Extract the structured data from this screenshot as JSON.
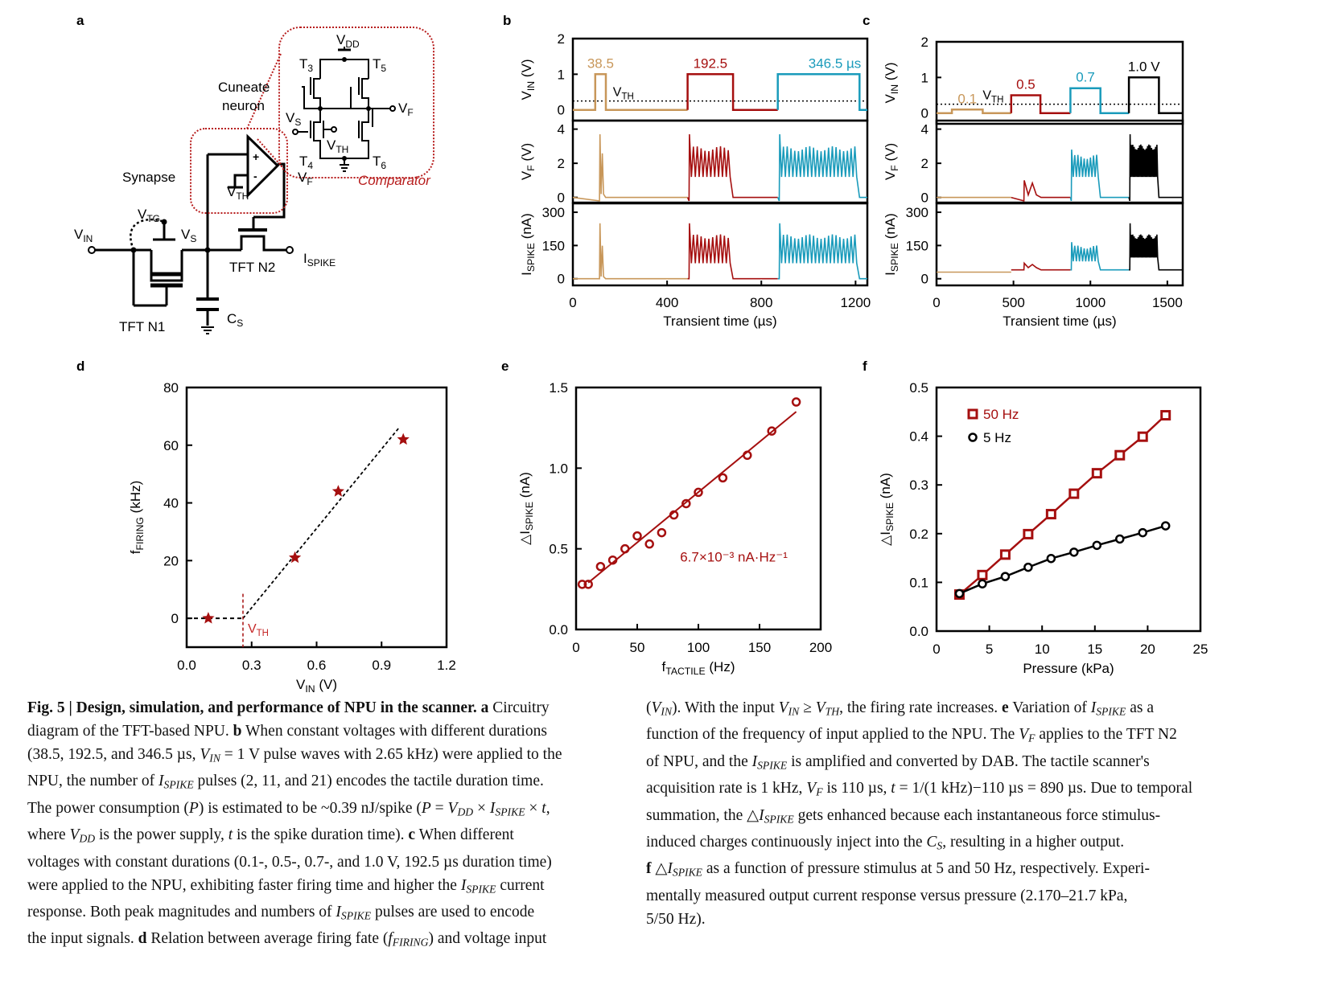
{
  "figure": {
    "panel_labels": [
      "a",
      "b",
      "c",
      "d",
      "e",
      "f"
    ],
    "colors": {
      "tan": "#c8975a",
      "red": "#a50f0f",
      "cyan": "#1a9bbb",
      "black": "#000000"
    }
  },
  "panel_a": {
    "cuneate_label_1": "Cuneate",
    "cuneate_label_2": "neuron",
    "synapse_label": "Synapse",
    "vtg": "V",
    "vtg_sub": "TG",
    "vin": "V",
    "vin_sub": "IN",
    "vs": "V",
    "vs_sub": "S",
    "vf": "V",
    "vf_sub": "F",
    "vth": "V",
    "vth_sub": "TH",
    "ispike": "I",
    "ispike_sub": "SPIKE",
    "cs": "C",
    "cs_sub": "S",
    "tft_n1": "TFT N1",
    "tft_n2": "TFT N2",
    "plus": "+",
    "minus": "-",
    "comparator_label": "Comparator",
    "vdd": "V",
    "vdd_sub": "DD",
    "t3": "T",
    "t3_sub": "3",
    "t4": "T",
    "t4_sub": "4",
    "t5": "T",
    "t5_sub": "5",
    "t6": "T",
    "t6_sub": "6",
    "cvs": "V",
    "cvs_sub": "S",
    "cvf": "V",
    "cvf_sub": "F",
    "cvth": "V",
    "cvth_sub": "TH"
  },
  "caption": {
    "lines_left": [
      "<b>Fig. 5 | Design, simulation, and performance of NPU in the scanner. a</b> Circuitry",
      "diagram of the TFT-based NPU. <b>b</b> When constant voltages with different durations",
      "(38.5, 192.5, and 346.5 µs, <i>V<span class='sub'>IN</span></i> = 1 V pulse waves with 2.65 kHz) were applied to the",
      "NPU, the number of <i>I<span class='sub'>SPIKE</span></i> pulses (2, 11, and 21) encodes the tactile duration time.",
      "The power consumption (<i>P</i>) is estimated to be ~0.39 nJ/spike (<i>P</i> = <i>V<span class='sub'>DD</span></i> × <i>I<span class='sub'>SPIKE</span></i> × <i>t</i>,",
      "where <i>V<span class='sub'>DD</span></i> is the power supply, <i>t</i> is the spike duration time). <b>c</b> When different",
      "voltages with constant durations (0.1-, 0.5-, 0.7-, and 1.0 V, 192.5 µs duration time)",
      "were applied to the NPU, exhibiting faster firing time and higher the <i>I<span class='sub'>SPIKE</span></i> current",
      "response. Both peak magnitudes and numbers of <i>I<span class='sub'>SPIKE</span></i> pulses are used to encode",
      "the input signals. <b>d</b> Relation between average firing fate (<i>f<span class='sub'>FIRING</span></i>) and voltage input"
    ],
    "lines_right": [
      "(<i>V<span class='sub'>IN</span></i>). With the input <i>V<span class='sub'>IN</span></i> ≥ <i>V<span class='sub'>TH</span></i>, the firing rate increases. <b>e</b> Variation of <i>I<span class='sub'>SPIKE</span></i> as a",
      "function of the frequency of input applied to the NPU. The <i>V<span class='sub'>F</span></i> applies to the TFT N2",
      "of NPU, and the <i>I<span class='sub'>SPIKE</span></i> is amplified and converted by DAB. The tactile scanner's",
      "acquisition rate is 1 kHz, <i>V<span class='sub'>F</span></i> is 110 µs, <i>t</i> = 1/(1 kHz)−110 µs = 890 µs. Due to temporal",
      "summation, the △<i>I<span class='sub'>SPIKE</span></i> gets enhanced because each instantaneous force stimulus-",
      "induced charges continuously inject into the <i>C<span class='sub'>S</span></i>, resulting in a higher output.",
      "<b>f</b> △<i>I<span class='sub'>SPIKE</span></i> as a function of pressure stimulus at 5 and 50 Hz, respectively. Experi-",
      "mentally measured output current response versus pressure (2.170–21.7 kPa,",
      "5/50 Hz)."
    ]
  },
  "chart_data": [
    {
      "panel": "b",
      "type": "line",
      "xlabel": "Transient time (µs)",
      "xlim": [
        0,
        1250
      ],
      "xticks": [
        0,
        400,
        800,
        1200
      ],
      "subplots": [
        {
          "ylabel": "V_IN (V)",
          "ylim": [
            -0.3,
            2
          ],
          "yticks": [
            0,
            1,
            2
          ],
          "vth_level": 0.25,
          "vth_label": "V_TH"
        },
        {
          "ylabel": "V_F (V)",
          "ylim": [
            -0.3,
            4.5
          ],
          "yticks": [
            0,
            2,
            4
          ]
        },
        {
          "ylabel": "I_SPIKE (nA)",
          "ylim": [
            -30,
            340
          ],
          "yticks": [
            0,
            150,
            300
          ]
        }
      ],
      "series": [
        {
          "name": "38.5 µs",
          "label": "38.5",
          "color": "#c8975a",
          "segment": [
            0,
            487
          ],
          "pulse": [
            95,
            140
          ],
          "vin": 1.0,
          "spikes": 2,
          "vf_peak": 3.7,
          "vf_plateau": 2.6,
          "i_peak": 250,
          "i_plateau": 150
        },
        {
          "name": "192.5 µs",
          "label": "192.5",
          "color": "#a50f0f",
          "segment": [
            487,
            870
          ],
          "pulse": [
            487,
            680
          ],
          "vin": 1.0,
          "spikes": 11,
          "vf_peak": 3.7,
          "vf_plateau": 3.0,
          "i_peak": 250,
          "i_plateau": 200
        },
        {
          "name": "346.5 µs",
          "label": "346.5 µs",
          "color": "#1a9bbb",
          "segment": [
            870,
            1250
          ],
          "pulse": [
            870,
            1217
          ],
          "vin": 1.0,
          "spikes": 21,
          "vf_peak": 3.7,
          "vf_plateau": 3.0,
          "i_peak": 250,
          "i_plateau": 200
        }
      ]
    },
    {
      "panel": "c",
      "type": "line",
      "xlabel": "Transient time (µs)",
      "xlim": [
        0,
        1600
      ],
      "xticks": [
        0,
        500,
        1000,
        1500
      ],
      "subplots": [
        {
          "ylabel": "V_IN (V)",
          "ylim": [
            -0.3,
            2
          ],
          "yticks": [
            0,
            1,
            2
          ],
          "vth_level": 0.25,
          "vth_label": "V_TH"
        },
        {
          "ylabel": "V_F (V)",
          "ylim": [
            -0.3,
            4.5
          ],
          "yticks": [
            0,
            2,
            4
          ]
        },
        {
          "ylabel": "I_SPIKE (nA)",
          "ylim": [
            -30,
            340
          ],
          "yticks": [
            0,
            150,
            300
          ]
        }
      ],
      "series": [
        {
          "name": "0.1 V",
          "label": "0.1",
          "color": "#c8975a",
          "segment": [
            0,
            485
          ],
          "pulse": [
            100,
            300
          ],
          "vin": 0.1,
          "spikes": 0,
          "vf_peak": 0,
          "vf_plateau": 0,
          "i_base": 30,
          "i_peak": 30,
          "i_plateau": 30
        },
        {
          "name": "0.5 V",
          "label": "0.5",
          "color": "#a50f0f",
          "segment": [
            485,
            870
          ],
          "pulse": [
            485,
            675
          ],
          "vin": 0.5,
          "spikes": 2,
          "vf_peak": 1.0,
          "vf_plateau": 0.85,
          "i_base": 40,
          "i_peak": 70,
          "i_plateau": 65
        },
        {
          "name": "0.7 V",
          "label": "0.7",
          "color": "#1a9bbb",
          "segment": [
            870,
            1250
          ],
          "pulse": [
            870,
            1065
          ],
          "vin": 0.7,
          "spikes": 9,
          "vf_peak": 2.8,
          "vf_plateau": 2.5,
          "i_base": 40,
          "i_peak": 165,
          "i_plateau": 150
        },
        {
          "name": "1.0 V",
          "label": "1.0 V",
          "color": "#000000",
          "segment": [
            1250,
            1600
          ],
          "pulse": [
            1250,
            1445
          ],
          "vin": 1.0,
          "spikes": 21,
          "vf_peak": 3.7,
          "vf_plateau": 3.1,
          "i_base": 40,
          "i_peak": 250,
          "i_plateau": 200
        }
      ]
    },
    {
      "panel": "d",
      "type": "scatter",
      "xlabel": "V_IN (V)",
      "ylabel": "f_FIRING (kHz)",
      "xlim": [
        0.0,
        1.2
      ],
      "ylim": [
        -10,
        80
      ],
      "xticks": [
        0.0,
        0.3,
        0.6,
        0.9,
        1.2
      ],
      "yticks": [
        0,
        20,
        40,
        60,
        80
      ],
      "points": [
        {
          "x": 0.1,
          "y": 0
        },
        {
          "x": 0.5,
          "y": 21
        },
        {
          "x": 0.7,
          "y": 44
        },
        {
          "x": 1.0,
          "y": 62
        }
      ],
      "fit_line": [
        [
          0.0,
          0
        ],
        [
          0.26,
          0
        ],
        [
          0.98,
          66
        ]
      ],
      "vth": 0.26,
      "vth_label": "V_TH"
    },
    {
      "panel": "e",
      "type": "scatter",
      "xlabel": "f_TACTILE (Hz)",
      "ylabel": "ΔI_SPIKE (nA)",
      "xlim": [
        0,
        200
      ],
      "ylim": [
        0.0,
        1.5
      ],
      "xticks": [
        0,
        50,
        100,
        150,
        200
      ],
      "yticks": [
        0.0,
        0.5,
        1.0,
        1.5
      ],
      "points": [
        {
          "x": 5,
          "y": 0.28
        },
        {
          "x": 10,
          "y": 0.28
        },
        {
          "x": 20,
          "y": 0.39
        },
        {
          "x": 30,
          "y": 0.43
        },
        {
          "x": 40,
          "y": 0.5
        },
        {
          "x": 50,
          "y": 0.58
        },
        {
          "x": 60,
          "y": 0.53
        },
        {
          "x": 70,
          "y": 0.6
        },
        {
          "x": 80,
          "y": 0.71
        },
        {
          "x": 90,
          "y": 0.78
        },
        {
          "x": 100,
          "y": 0.85
        },
        {
          "x": 120,
          "y": 0.94
        },
        {
          "x": 140,
          "y": 1.08
        },
        {
          "x": 160,
          "y": 1.23
        },
        {
          "x": 180,
          "y": 1.41
        }
      ],
      "fit_line": [
        [
          10,
          0.29
        ],
        [
          180,
          1.35
        ]
      ],
      "annotation": "6.7×10⁻³ nA·Hz⁻¹",
      "color": "#a50f0f"
    },
    {
      "panel": "f",
      "type": "line",
      "xlabel": "Pressure (kPa)",
      "ylabel": "ΔI_SPIKE (nA)",
      "xlim": [
        0,
        25
      ],
      "ylim": [
        0.0,
        0.5
      ],
      "xticks": [
        0,
        5,
        10,
        15,
        20,
        25
      ],
      "yticks": [
        0.0,
        0.1,
        0.2,
        0.3,
        0.4,
        0.5
      ],
      "legend_position": "top-left",
      "x": [
        2.17,
        4.34,
        6.51,
        8.68,
        10.85,
        13.02,
        15.19,
        17.36,
        19.53,
        21.7
      ],
      "series": [
        {
          "name": "50 Hz",
          "marker": "square",
          "color": "#a50f0f",
          "values": [
            0.075,
            0.115,
            0.157,
            0.199,
            0.24,
            0.282,
            0.324,
            0.361,
            0.399,
            0.443
          ]
        },
        {
          "name": "5 Hz",
          "marker": "circle",
          "color": "#000000",
          "values": [
            0.077,
            0.097,
            0.112,
            0.131,
            0.149,
            0.162,
            0.176,
            0.189,
            0.202,
            0.216
          ]
        }
      ]
    }
  ]
}
